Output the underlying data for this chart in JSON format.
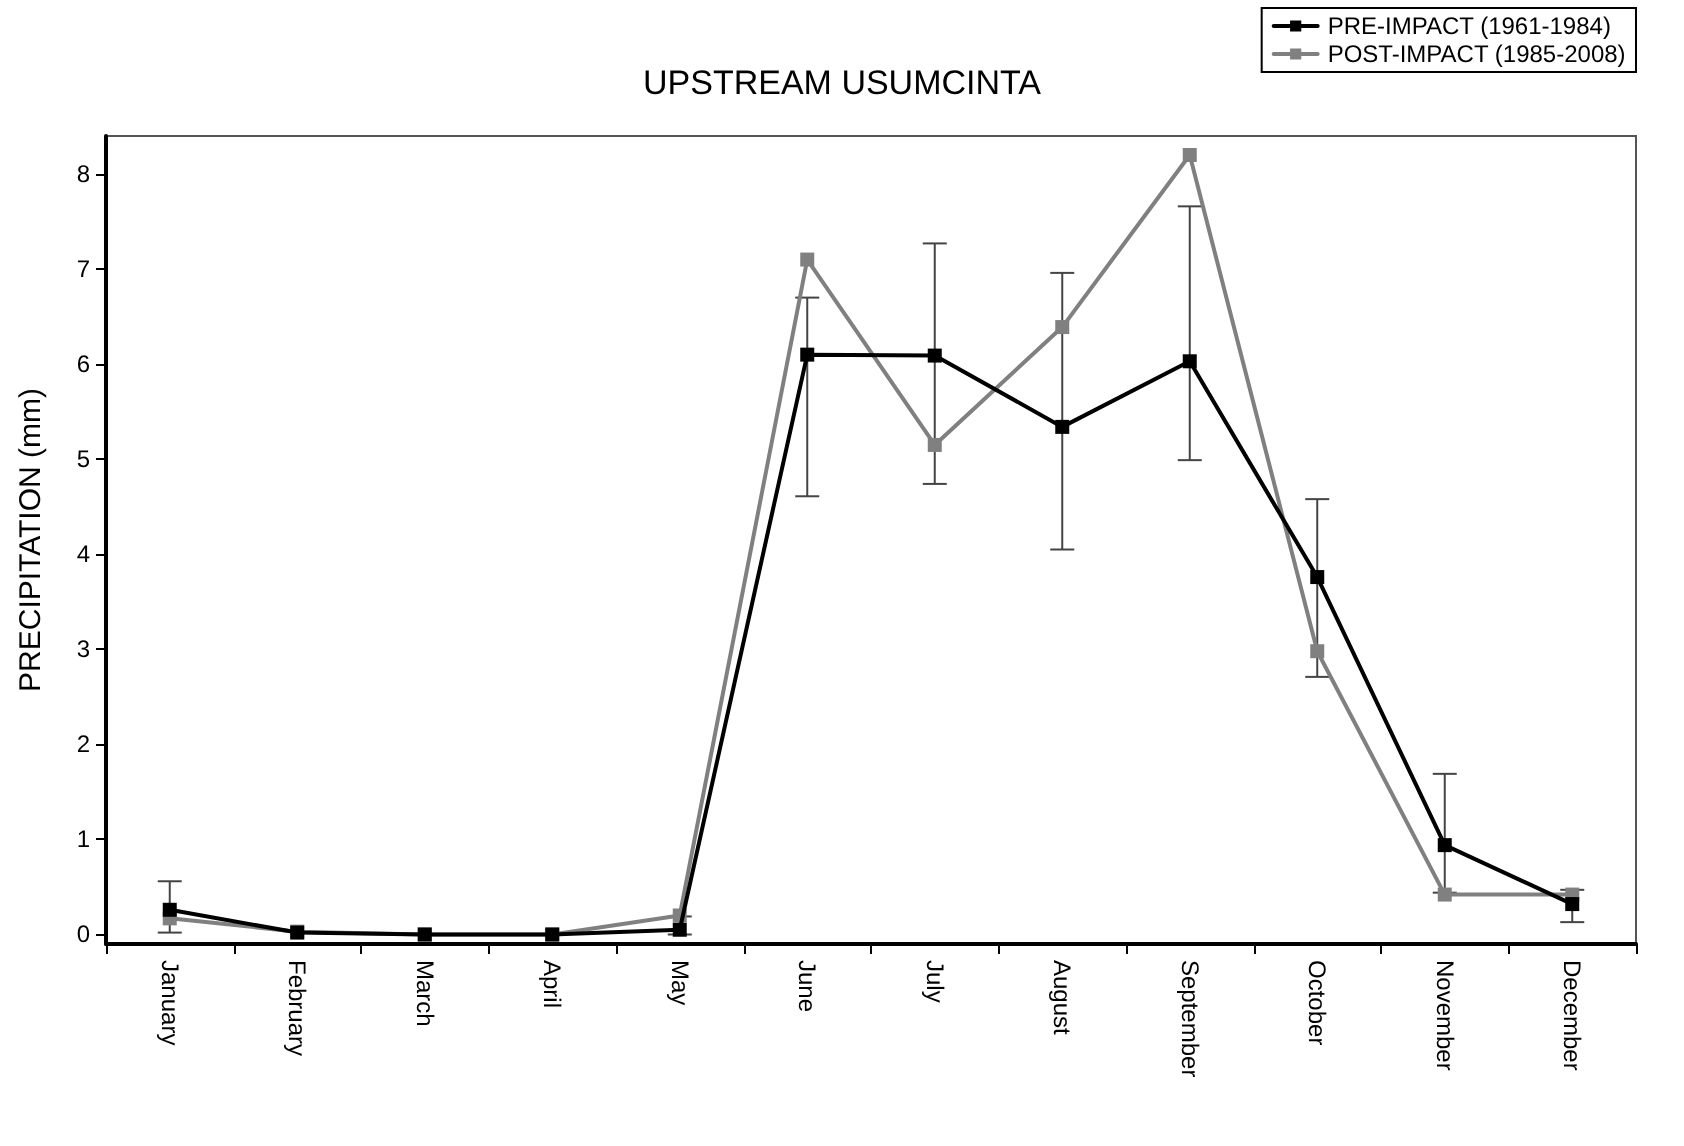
{
  "chart_data": {
    "type": "line",
    "title": "UPSTREAM USUMCINTA",
    "ylabel": "PRECIPITATION (mm)",
    "categories": [
      "January",
      "February",
      "March",
      "April",
      "May",
      "June",
      "July",
      "August",
      "September",
      "October",
      "November",
      "December"
    ],
    "series": [
      {
        "name": "PRE-IMPACT (1961-1984)",
        "color": "#000000",
        "values": [
          0.26,
          0.02,
          0,
          0,
          0.05,
          6.1,
          6.09,
          5.34,
          6.03,
          3.76,
          0.94,
          0.32
        ],
        "errors": [
          [
            0.02,
            0.56
          ],
          null,
          null,
          null,
          [
            0,
            0.19
          ],
          [
            4.61,
            6.7
          ],
          [
            4.74,
            7.27
          ],
          [
            4.05,
            6.96
          ],
          [
            4.99,
            7.66
          ],
          [
            2.71,
            4.58
          ],
          [
            0.44,
            1.69
          ],
          [
            0.13,
            0.47
          ]
        ]
      },
      {
        "name": "POST-IMPACT (1985-2008)",
        "color": "#808080",
        "values": [
          0.17,
          0.03,
          0,
          0,
          0.2,
          7.1,
          5.15,
          6.39,
          8.2,
          2.98,
          0.42,
          0.42
        ]
      }
    ],
    "ylim": [
      -0.1,
      8.4
    ],
    "yticks": [
      0,
      1,
      2,
      3,
      4,
      5,
      6,
      7,
      8
    ],
    "grid": false,
    "legend": "top right",
    "marker": "square",
    "line_style": "solid"
  }
}
